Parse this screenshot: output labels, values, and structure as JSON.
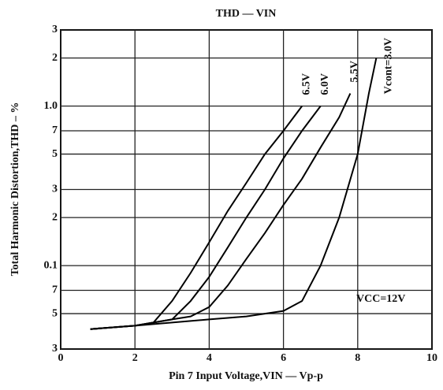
{
  "chart_data": {
    "type": "line",
    "title": "THD — VIN",
    "x_label": "Pin 7 Input Voltage,VIN — Vp-p",
    "y_label": "Total Harmonic Distortion,THD – %",
    "annotation": "VCC=12V",
    "y_log": true,
    "grid": true,
    "xlim": [
      0,
      10
    ],
    "xticks": [
      0,
      2,
      4,
      6,
      8,
      10
    ],
    "ylim": [
      0.03,
      3
    ],
    "yticks": [
      3,
      2,
      {
        "value": 1,
        "label": "1.0"
      },
      {
        "value": 0.7,
        "label": "7"
      },
      {
        "value": 0.5,
        "label": "5"
      },
      {
        "value": 0.3,
        "label": "3"
      },
      {
        "value": 0.2,
        "label": "2"
      },
      0.1,
      {
        "value": 0.07,
        "label": "7"
      },
      {
        "value": 0.05,
        "label": "5"
      },
      {
        "value": 0.03,
        "label": "3"
      }
    ],
    "series": [
      {
        "name": "6.5V",
        "color": "#000000",
        "x": [
          0.8,
          2,
          2.5,
          3,
          3.5,
          4,
          4.5,
          5,
          5.5,
          6,
          6.5
        ],
        "values": [
          0.04,
          0.042,
          0.044,
          0.06,
          0.09,
          0.14,
          0.22,
          0.33,
          0.5,
          0.7,
          1.0
        ]
      },
      {
        "name": "6.0V",
        "color": "#000000",
        "x": [
          0.8,
          2,
          3,
          3.5,
          4,
          4.5,
          5,
          5.5,
          6,
          6.5,
          7
        ],
        "values": [
          0.04,
          0.042,
          0.046,
          0.06,
          0.085,
          0.13,
          0.2,
          0.3,
          0.47,
          0.7,
          1.0
        ]
      },
      {
        "name": "5.5V",
        "color": "#000000",
        "x": [
          0.8,
          2,
          3,
          3.5,
          4,
          4.5,
          5,
          5.5,
          6,
          6.5,
          7,
          7.5,
          7.8
        ],
        "values": [
          0.04,
          0.042,
          0.046,
          0.048,
          0.055,
          0.075,
          0.11,
          0.16,
          0.24,
          0.35,
          0.55,
          0.85,
          1.2
        ]
      },
      {
        "name": "Vcont=3.0V",
        "color": "#000000",
        "x": [
          0.8,
          2,
          4,
          5,
          6,
          6.5,
          7,
          7.5,
          8,
          8.3,
          8.5
        ],
        "values": [
          0.04,
          0.042,
          0.046,
          0.048,
          0.052,
          0.06,
          0.1,
          0.2,
          0.5,
          1.2,
          2.0
        ]
      }
    ]
  }
}
